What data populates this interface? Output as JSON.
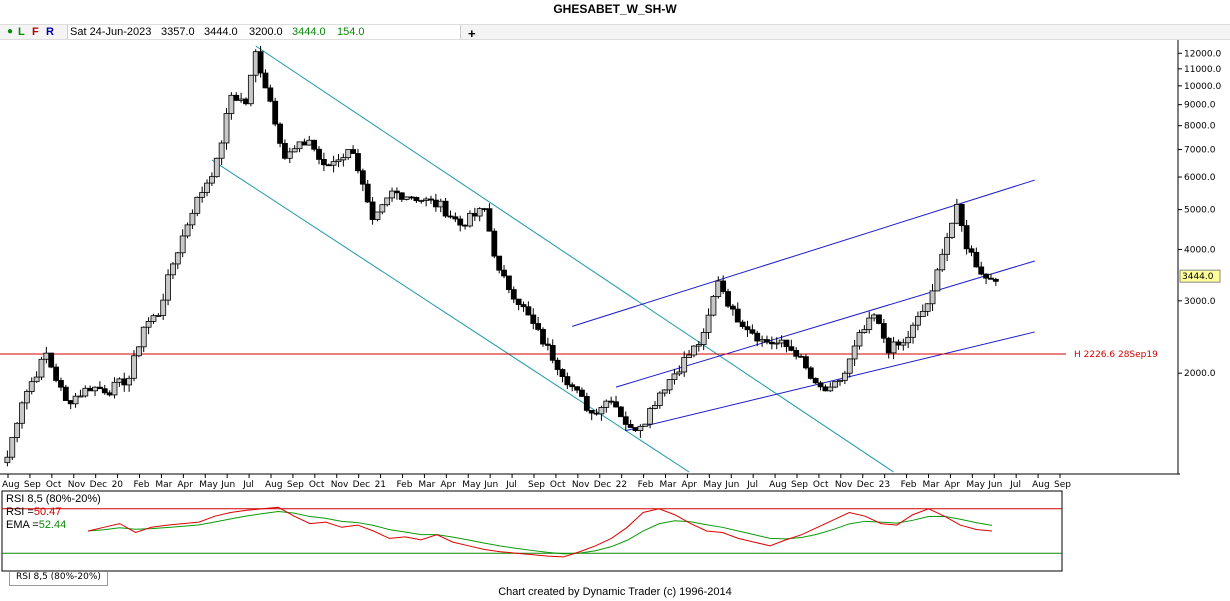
{
  "title": "GHESABET_W_SH-W",
  "infobar": {
    "dot": "●",
    "l": "L",
    "f": "F",
    "r": "R",
    "date": "Sat 24-Jun-2023",
    "open": "3357.0",
    "high": "3444.0",
    "low": "3200.0",
    "close": "3444.0",
    "change": "154.0",
    "plus": "+"
  },
  "price_axis": {
    "ticks": [
      "12000.0",
      "11000.0",
      "10000.0",
      "9000.0",
      "8000.0",
      "7000.0",
      "6000.0",
      "5000.0",
      "4000.0",
      "3000.0",
      "2000.0"
    ],
    "last_price": "3444.0",
    "scale": "log"
  },
  "time_axis": {
    "labels": [
      "Aug",
      "Sep",
      "Oct",
      "Nov",
      "Dec",
      "20",
      "Feb",
      "Mar",
      "Apr",
      "May",
      "Jun",
      "Jul",
      "Aug",
      "Sep",
      "Oct",
      "Nov",
      "Dec",
      "21",
      "Feb",
      "Mar",
      "Apr",
      "May",
      "Jun",
      "Jul",
      "Sep",
      "Oct",
      "Nov",
      "Dec",
      "22",
      "Feb",
      "Mar",
      "Apr",
      "May",
      "Jun",
      "Jul",
      "Aug",
      "Sep",
      "Oct",
      "Nov",
      "Dec",
      "23",
      "Feb",
      "Mar",
      "Apr",
      "May",
      "Jun",
      "Jul",
      "Aug",
      "Sep"
    ]
  },
  "hline": {
    "label": "H 2226.6 28Sep19",
    "value": 2226.6,
    "color": "#d40000"
  },
  "rsi": {
    "name": "RSI 8,5 (80%-20%)",
    "rsi_label": "RSI",
    "rsi_value": "50.47",
    "ema_label": "EMA",
    "ema_value": "52.44",
    "upper": 80,
    "lower": 20
  },
  "footer": "Chart created by Dynamic Trader  (c) 1996-2014",
  "colors": {
    "channel_blue": "#1a1ad0",
    "channel_teal": "#1a9aa8",
    "rsi_line": "#e00000",
    "ema_line": "#0a9a0a"
  },
  "chart_data": {
    "type": "candlestick",
    "title": "GHESABET_W_SH-W",
    "y_scale": "log",
    "ylim": [
      1150,
      12500
    ],
    "anchors": [
      {
        "date": "2019-08-03",
        "close": 1250
      },
      {
        "date": "2019-08-24",
        "close": 1720
      },
      {
        "date": "2019-09-28",
        "close": 2226
      },
      {
        "date": "2019-10-26",
        "close": 1700
      },
      {
        "date": "2019-11-30",
        "close": 1850
      },
      {
        "date": "2019-12-28",
        "close": 1820
      },
      {
        "date": "2020-01-25",
        "close": 1950
      },
      {
        "date": "2020-02-15",
        "close": 2600
      },
      {
        "date": "2020-03-07",
        "close": 2800
      },
      {
        "date": "2020-03-28",
        "close": 3700
      },
      {
        "date": "2020-04-25",
        "close": 5000
      },
      {
        "date": "2020-05-30",
        "close": 6500
      },
      {
        "date": "2020-06-20",
        "close": 9500
      },
      {
        "date": "2020-07-11",
        "close": 9100
      },
      {
        "date": "2020-07-25",
        "close": 12000
      },
      {
        "date": "2020-08-15",
        "close": 9200
      },
      {
        "date": "2020-09-05",
        "close": 6700
      },
      {
        "date": "2020-10-10",
        "close": 7400
      },
      {
        "date": "2020-10-31",
        "close": 6300
      },
      {
        "date": "2020-11-21",
        "close": 6700
      },
      {
        "date": "2020-12-12",
        "close": 7000
      },
      {
        "date": "2021-01-09",
        "close": 4600
      },
      {
        "date": "2021-02-06",
        "close": 5500
      },
      {
        "date": "2021-03-06",
        "close": 5400
      },
      {
        "date": "2021-04-17",
        "close": 5100
      },
      {
        "date": "2021-05-15",
        "close": 4600
      },
      {
        "date": "2021-06-19",
        "close": 5000
      },
      {
        "date": "2021-07-10",
        "close": 3500
      },
      {
        "date": "2021-08-07",
        "close": 3000
      },
      {
        "date": "2021-09-04",
        "close": 2500
      },
      {
        "date": "2021-10-02",
        "close": 2100
      },
      {
        "date": "2021-10-23",
        "close": 1850
      },
      {
        "date": "2021-11-20",
        "close": 1600
      },
      {
        "date": "2021-12-18",
        "close": 1750
      },
      {
        "date": "2022-01-15",
        "close": 1450
      },
      {
        "date": "2022-02-05",
        "close": 1550
      },
      {
        "date": "2022-02-26",
        "close": 1800
      },
      {
        "date": "2022-04-02",
        "close": 2150
      },
      {
        "date": "2022-04-30",
        "close": 2450
      },
      {
        "date": "2022-05-21",
        "close": 3400
      },
      {
        "date": "2022-06-11",
        "close": 2800
      },
      {
        "date": "2022-07-02",
        "close": 2600
      },
      {
        "date": "2022-07-23",
        "close": 2400
      },
      {
        "date": "2022-08-20",
        "close": 2350
      },
      {
        "date": "2022-09-10",
        "close": 2250
      },
      {
        "date": "2022-10-08",
        "close": 1850
      },
      {
        "date": "2022-10-29",
        "close": 1800
      },
      {
        "date": "2022-11-19",
        "close": 2000
      },
      {
        "date": "2022-12-10",
        "close": 2450
      },
      {
        "date": "2022-12-31",
        "close": 2750
      },
      {
        "date": "2023-01-21",
        "close": 2300
      },
      {
        "date": "2023-02-11",
        "close": 2350
      },
      {
        "date": "2023-03-04",
        "close": 2700
      },
      {
        "date": "2023-03-25",
        "close": 3100
      },
      {
        "date": "2023-04-08",
        "close": 4000
      },
      {
        "date": "2023-04-29",
        "close": 5000
      },
      {
        "date": "2023-05-13",
        "close": 4100
      },
      {
        "date": "2023-05-27",
        "close": 3700
      },
      {
        "date": "2023-06-10",
        "close": 3400
      },
      {
        "date": "2023-06-24",
        "close": 3444
      }
    ],
    "rsi_approx": [
      50,
      55,
      60,
      48,
      55,
      58,
      60,
      62,
      70,
      75,
      78,
      80,
      82,
      70,
      60,
      62,
      55,
      58,
      50,
      40,
      42,
      38,
      45,
      35,
      30,
      25,
      22,
      20,
      18,
      16,
      15,
      22,
      30,
      40,
      55,
      75,
      80,
      72,
      60,
      50,
      48,
      40,
      35,
      30,
      38,
      45,
      55,
      65,
      75,
      70,
      60,
      58,
      72,
      80,
      70,
      58,
      52,
      50
    ]
  }
}
